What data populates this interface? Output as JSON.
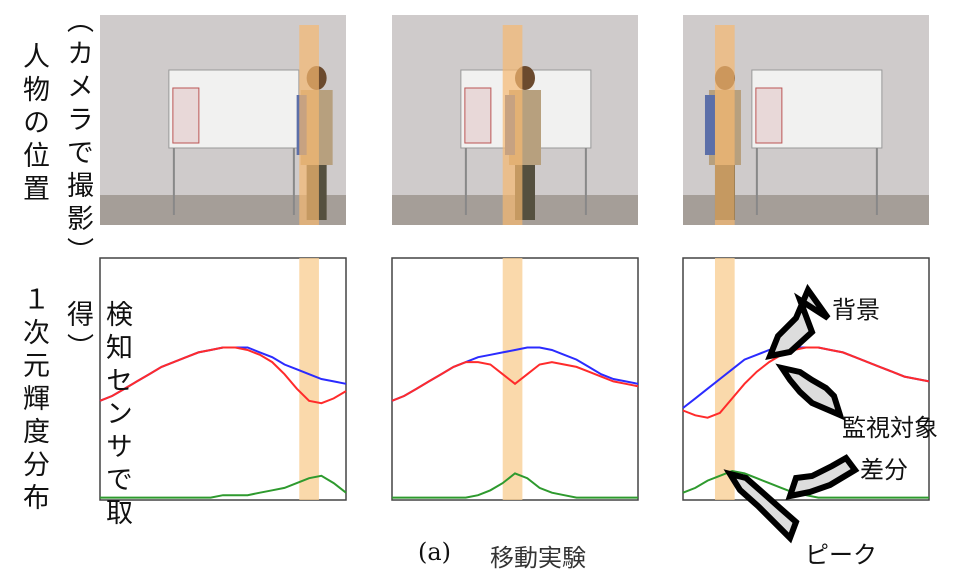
{
  "labels": {
    "position": "人物の位置",
    "camera": "（カメラで撮影）",
    "profile": "１次元輝度分布",
    "sensor": "検知センサで取得）"
  },
  "annotations": {
    "background": "背景",
    "target": "監視対象",
    "difference": "差分",
    "peak": "ピーク"
  },
  "caption": {
    "tag": "(a)",
    "text": "移動実験"
  },
  "plots": [
    {
      "series": [
        {
          "color": "#2b2bff",
          "values": [
            41,
            43,
            46,
            49,
            52,
            55,
            57,
            59,
            61,
            62,
            63,
            63,
            63,
            61,
            59,
            56,
            54,
            52,
            50,
            49,
            48
          ]
        },
        {
          "color": "#ff2b2b",
          "values": [
            41,
            43,
            46,
            49,
            52,
            55,
            57,
            59,
            61,
            62,
            63,
            63,
            62,
            60,
            57,
            52,
            46,
            41,
            40,
            42,
            45
          ]
        },
        {
          "color": "#2e9a2e",
          "values": [
            1,
            1,
            1,
            1,
            1,
            1,
            1,
            1,
            1,
            1,
            2,
            2,
            2,
            3,
            4,
            5,
            7,
            9,
            10,
            7,
            3
          ]
        }
      ]
    },
    {
      "series": [
        {
          "color": "#2b2bff",
          "values": [
            41,
            43,
            46,
            49,
            52,
            55,
            57,
            59,
            60,
            61,
            62,
            63,
            63,
            62,
            60,
            58,
            55,
            52,
            50,
            49,
            48
          ]
        },
        {
          "color": "#ff2b2b",
          "values": [
            41,
            43,
            46,
            49,
            52,
            55,
            57,
            57,
            56,
            52,
            48,
            52,
            56,
            57,
            56,
            55,
            53,
            51,
            49,
            48,
            47
          ]
        },
        {
          "color": "#2e9a2e",
          "values": [
            1,
            1,
            1,
            1,
            1,
            1,
            1,
            2,
            4,
            7,
            11,
            9,
            5,
            3,
            2,
            1,
            1,
            1,
            1,
            1,
            1
          ]
        }
      ]
    },
    {
      "series": [
        {
          "color": "#2b2bff",
          "values": [
            38,
            42,
            46,
            50,
            54,
            58,
            60,
            62,
            62,
            63,
            63,
            63,
            62,
            61,
            59,
            57,
            55,
            53,
            51,
            50,
            49
          ]
        },
        {
          "color": "#ff2b2b",
          "values": [
            37,
            35,
            34,
            36,
            42,
            48,
            53,
            57,
            60,
            62,
            63,
            63,
            62,
            61,
            59,
            57,
            55,
            53,
            51,
            50,
            49
          ]
        },
        {
          "color": "#2e9a2e",
          "values": [
            3,
            5,
            8,
            10,
            12,
            11,
            9,
            7,
            5,
            3,
            2,
            1,
            1,
            1,
            1,
            1,
            1,
            1,
            1,
            1,
            1
          ]
        }
      ]
    }
  ]
}
